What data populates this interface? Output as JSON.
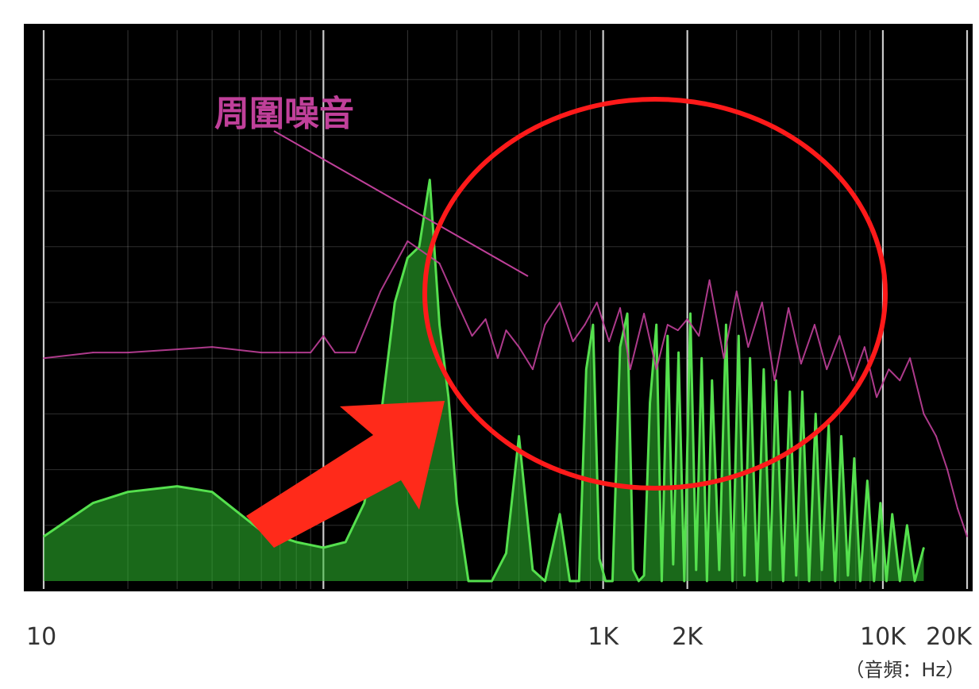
{
  "chart_data": {
    "type": "line",
    "title": "",
    "xscale": "log",
    "xlim": [
      10,
      20000
    ],
    "ylim": [
      0,
      100
    ],
    "xlabel": "（音頻：Hz）",
    "x_tick_labels": [
      {
        "value": 10,
        "label": "10"
      },
      {
        "value": 1000,
        "label": "1K"
      },
      {
        "value": 2000,
        "label": "2K"
      },
      {
        "value": 10000,
        "label": "10K"
      },
      {
        "value": 20000,
        "label": "20K"
      }
    ],
    "grid": true,
    "background": "#000000",
    "colors": {
      "noise": "#c0409a",
      "noise_label": "#c0409a",
      "signal": "#55e04e",
      "signal_fill": "#2fbf2f",
      "ellipse": "#ff1a1a",
      "arrow": "#ff2a1a",
      "grid": "#9a9a9a",
      "plot_bg": "#000000"
    },
    "series": [
      {
        "id": "noise",
        "name": "周圍噪音",
        "x": [
          10,
          15,
          20,
          40,
          60,
          90,
          100,
          110,
          130,
          160,
          200,
          260,
          300,
          340,
          380,
          420,
          450,
          500,
          560,
          620,
          700,
          780,
          860,
          950,
          1050,
          1150,
          1250,
          1400,
          1550,
          1700,
          1850,
          2000,
          2200,
          2400,
          2700,
          3000,
          3300,
          3700,
          4100,
          4600,
          5100,
          5700,
          6300,
          7000,
          7800,
          8600,
          9500,
          10500,
          11500,
          12500,
          14000,
          15500,
          17000,
          18500,
          20000
        ],
        "y": [
          40,
          41,
          41,
          42,
          41,
          41,
          44,
          41,
          41,
          52,
          61,
          57,
          50,
          44,
          47,
          40,
          45,
          42,
          38,
          46,
          50,
          43,
          46,
          50,
          43,
          49,
          38,
          48,
          38,
          46,
          45,
          47,
          44,
          54,
          40,
          52,
          42,
          50,
          36,
          49,
          39,
          46,
          38,
          44,
          36,
          42,
          33,
          38,
          36,
          40,
          30,
          26,
          20,
          13,
          8
        ]
      },
      {
        "id": "signal",
        "name": "",
        "x": [
          10,
          15,
          20,
          30,
          40,
          60,
          80,
          100,
          120,
          140,
          160,
          180,
          200,
          220,
          240,
          260,
          280,
          300,
          330,
          360,
          400,
          450,
          500,
          560,
          620,
          700,
          760,
          820,
          870,
          920,
          970,
          1020,
          1080,
          1150,
          1220,
          1280,
          1340,
          1400,
          1470,
          1550,
          1620,
          1700,
          1780,
          1860,
          1950,
          2050,
          2150,
          2250,
          2350,
          2450,
          2600,
          2750,
          2900,
          3050,
          3200,
          3350,
          3550,
          3750,
          3950,
          4150,
          4400,
          4650,
          4900,
          5150,
          5450,
          5750,
          6050,
          6400,
          6750,
          7100,
          7500,
          7900,
          8300,
          8800,
          9300,
          9800,
          10300,
          10800,
          11500,
          12200,
          13000,
          14000
        ],
        "y": [
          8,
          14,
          16,
          17,
          16,
          9,
          7,
          6,
          7,
          14,
          29,
          50,
          58,
          60,
          72,
          46,
          33,
          14,
          0,
          0,
          0,
          5,
          26,
          2,
          0,
          12,
          0,
          0,
          38,
          46,
          4,
          0,
          0,
          42,
          48,
          2,
          0,
          1,
          32,
          46,
          0,
          44,
          3,
          41,
          0,
          48,
          2,
          40,
          0,
          36,
          2,
          46,
          0,
          44,
          1,
          40,
          0,
          38,
          2,
          36,
          0,
          34,
          1,
          34,
          0,
          30,
          2,
          28,
          0,
          26,
          1,
          22,
          0,
          18,
          0,
          14,
          0,
          12,
          0,
          10,
          0,
          6
        ]
      }
    ],
    "annotations": [
      {
        "type": "text",
        "text": "周圍噪音",
        "color": "#c0409a"
      },
      {
        "type": "ellipse",
        "description": "highlighted region",
        "color": "#ff1a1a"
      },
      {
        "type": "arrow",
        "color": "#ff2a1a"
      }
    ]
  }
}
